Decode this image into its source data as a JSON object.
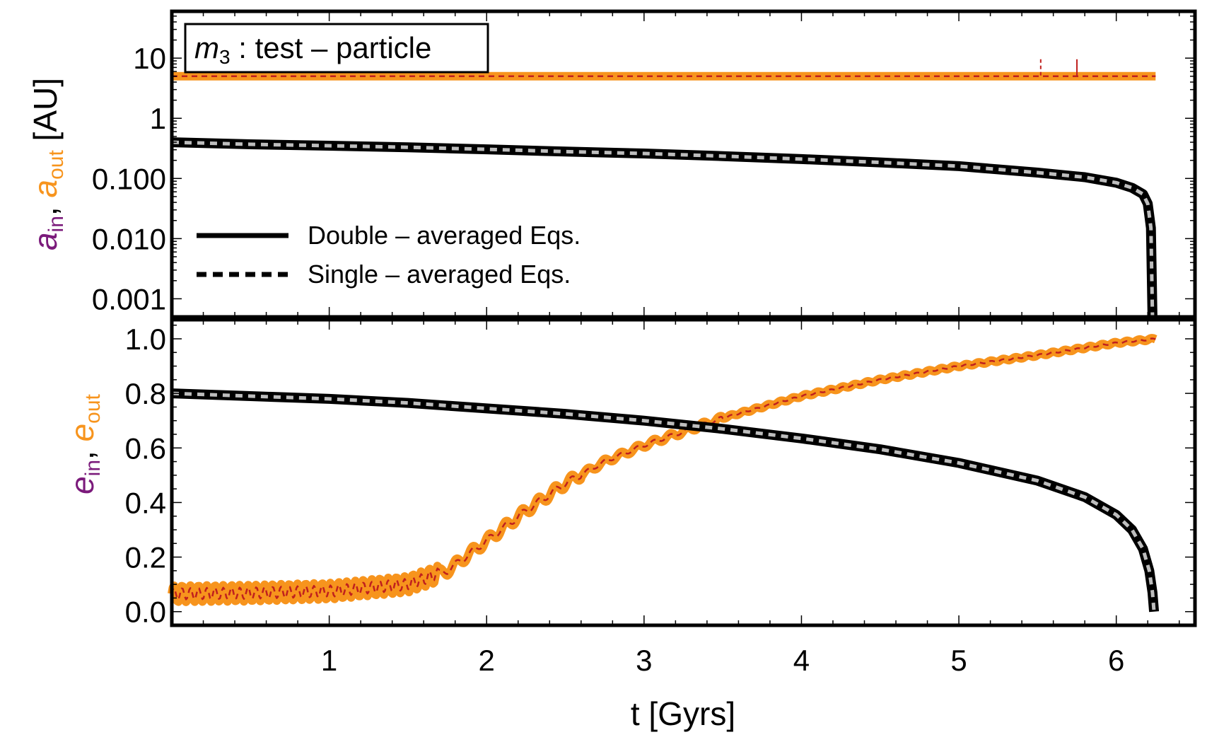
{
  "chart_data": [
    {
      "panel": "top",
      "type": "line",
      "yscale": "log",
      "ylim": [
        0.0005,
        60
      ],
      "xlim": [
        0,
        6.5
      ],
      "yticks": [
        {
          "value": 0.001,
          "label": "0.001"
        },
        {
          "value": 0.01,
          "label": "0.010"
        },
        {
          "value": 0.1,
          "label": "0.100"
        },
        {
          "value": 1,
          "label": "1"
        },
        {
          "value": 10,
          "label": "10"
        }
      ],
      "ylabel": {
        "in_symbol": "a",
        "in_sub": "in",
        "sep": ", ",
        "out_symbol": "a",
        "out_sub": "out",
        "unit": " [AU]"
      },
      "annotation": {
        "symbol": "m",
        "sub": "3",
        "text": " : test – particle"
      },
      "legend": [
        {
          "label": "Double – averaged Eqs.",
          "style": "solid"
        },
        {
          "label": "Single – averaged Eqs.",
          "style": "dashed"
        }
      ],
      "series": [
        {
          "name": "a_out double-averaged",
          "color": "#F7941D",
          "style": "solid",
          "x": [
            0,
            1,
            2,
            3,
            4,
            5,
            6,
            6.25
          ],
          "y": [
            5,
            5,
            5,
            5,
            5,
            5,
            5,
            5
          ]
        },
        {
          "name": "a_out single-averaged",
          "color": "#C0201E",
          "style": "dashed",
          "x": [
            0,
            1,
            2,
            3,
            4,
            5,
            5.5,
            5.75,
            6.25
          ],
          "y": [
            5,
            5,
            5,
            5,
            5,
            5,
            5,
            5,
            5
          ]
        },
        {
          "name": "a_in double-averaged",
          "color": "#000000",
          "style": "solid",
          "x": [
            0,
            0.5,
            1,
            1.5,
            2,
            2.5,
            3,
            3.5,
            4,
            4.5,
            5,
            5.5,
            5.8,
            6.0,
            6.1,
            6.17,
            6.2,
            6.22,
            6.23
          ],
          "y": [
            0.4,
            0.37,
            0.35,
            0.33,
            0.305,
            0.28,
            0.26,
            0.235,
            0.21,
            0.185,
            0.16,
            0.125,
            0.105,
            0.085,
            0.07,
            0.055,
            0.038,
            0.015,
            0.0005
          ]
        },
        {
          "name": "a_in single-averaged",
          "color": "#BDBDBD",
          "style": "dashed",
          "x": [
            0,
            0.5,
            1,
            1.5,
            2,
            2.5,
            3,
            3.5,
            4,
            4.5,
            5,
            5.5,
            5.8,
            6.0,
            6.1,
            6.17,
            6.2,
            6.22,
            6.23
          ],
          "y": [
            0.4,
            0.37,
            0.35,
            0.33,
            0.305,
            0.28,
            0.26,
            0.235,
            0.21,
            0.185,
            0.16,
            0.125,
            0.105,
            0.085,
            0.07,
            0.055,
            0.038,
            0.015,
            0.0005
          ]
        }
      ]
    },
    {
      "panel": "bottom",
      "type": "line",
      "ylim": [
        -0.05,
        1.07
      ],
      "xlim": [
        0,
        6.5
      ],
      "xlabel": "t [Gyrs]",
      "xticks": [
        {
          "value": 1,
          "label": "1"
        },
        {
          "value": 2,
          "label": "2"
        },
        {
          "value": 3,
          "label": "3"
        },
        {
          "value": 4,
          "label": "4"
        },
        {
          "value": 5,
          "label": "5"
        },
        {
          "value": 6,
          "label": "6"
        }
      ],
      "yticks": [
        {
          "value": 0.0,
          "label": "0.0"
        },
        {
          "value": 0.2,
          "label": "0.2"
        },
        {
          "value": 0.4,
          "label": "0.4"
        },
        {
          "value": 0.6,
          "label": "0.6"
        },
        {
          "value": 0.8,
          "label": "0.8"
        },
        {
          "value": 1.0,
          "label": "1.0"
        }
      ],
      "ylabel": {
        "in_symbol": "e",
        "in_sub": "in",
        "sep": ", ",
        "out_symbol": "e",
        "out_sub": "out"
      },
      "series": [
        {
          "name": "e_out double-averaged",
          "color": "#F7941D",
          "style": "solid",
          "x": [
            0,
            0.5,
            1,
            1.5,
            1.75,
            2,
            2.25,
            2.5,
            2.75,
            3,
            3.25,
            3.5,
            3.75,
            4,
            4.5,
            5,
            5.5,
            6,
            6.25
          ],
          "y": [
            0.065,
            0.068,
            0.075,
            0.1,
            0.15,
            0.26,
            0.37,
            0.47,
            0.55,
            0.61,
            0.66,
            0.71,
            0.75,
            0.79,
            0.85,
            0.9,
            0.94,
            0.985,
            1.0
          ]
        },
        {
          "name": "e_out single-averaged",
          "color": "#C0201E",
          "style": "dashed",
          "x": [
            0,
            0.5,
            1,
            1.5,
            1.75,
            2,
            2.25,
            2.5,
            2.75,
            3,
            3.25,
            3.5,
            3.75,
            4,
            4.5,
            5,
            5.5,
            6,
            6.25
          ],
          "y": [
            0.065,
            0.068,
            0.075,
            0.1,
            0.15,
            0.26,
            0.37,
            0.47,
            0.55,
            0.61,
            0.66,
            0.71,
            0.75,
            0.79,
            0.85,
            0.9,
            0.94,
            0.985,
            1.0
          ]
        },
        {
          "name": "e_in double-averaged",
          "color": "#000000",
          "style": "solid",
          "x": [
            0,
            0.5,
            1,
            1.5,
            2,
            2.5,
            3,
            3.5,
            4,
            4.5,
            5,
            5.5,
            5.8,
            6.0,
            6.1,
            6.17,
            6.21,
            6.23,
            6.24
          ],
          "y": [
            0.8,
            0.79,
            0.78,
            0.765,
            0.745,
            0.725,
            0.7,
            0.67,
            0.635,
            0.595,
            0.545,
            0.48,
            0.42,
            0.355,
            0.3,
            0.23,
            0.15,
            0.07,
            0.0
          ]
        },
        {
          "name": "e_in single-averaged",
          "color": "#BDBDBD",
          "style": "dashed",
          "x": [
            0,
            0.5,
            1,
            1.5,
            2,
            2.5,
            3,
            3.5,
            4,
            4.5,
            5,
            5.5,
            5.8,
            6.0,
            6.1,
            6.17,
            6.21,
            6.23,
            6.24
          ],
          "y": [
            0.8,
            0.79,
            0.78,
            0.765,
            0.745,
            0.725,
            0.7,
            0.67,
            0.635,
            0.595,
            0.545,
            0.48,
            0.42,
            0.355,
            0.3,
            0.23,
            0.15,
            0.07,
            0.0
          ]
        }
      ]
    }
  ],
  "colors": {
    "in_label": "#7B1A7B",
    "out_label": "#F7941D",
    "orange": "#F7941D",
    "red": "#C0201E",
    "black": "#000000",
    "gray_dash": "#BDBDBD"
  }
}
